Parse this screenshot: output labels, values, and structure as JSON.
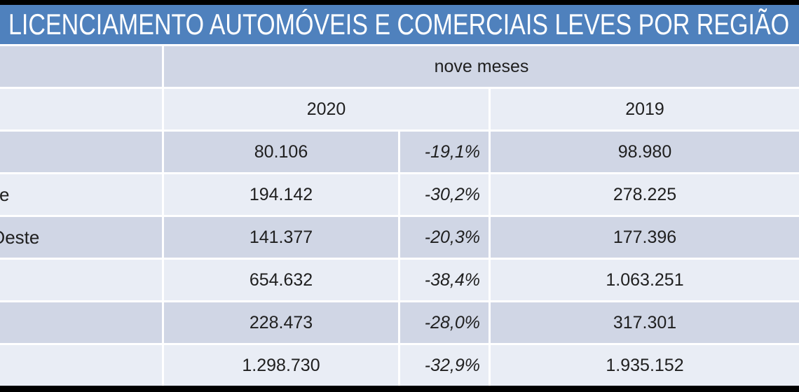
{
  "chart_data": {
    "type": "table",
    "title": "LICENCIAMENTO AUTOMÓVEIS E COMERCIAIS LEVES POR REGIÃO",
    "header": {
      "period_group": "nove meses",
      "year_2020": "2020",
      "year_2019": "2019"
    },
    "rows": [
      {
        "region_visible_text": "",
        "value_2020": "80.106",
        "variation": "-19,1%",
        "value_2019": "98.980"
      },
      {
        "region_visible_text": "e",
        "value_2020": "194.142",
        "variation": "-30,2%",
        "value_2019": "278.225"
      },
      {
        "region_visible_text": "Oeste",
        "value_2020": "141.377",
        "variation": "-20,3%",
        "value_2019": "177.396"
      },
      {
        "region_visible_text": "",
        "value_2020": "654.632",
        "variation": "-38,4%",
        "value_2019": "1.063.251"
      },
      {
        "region_visible_text": "",
        "value_2020": "228.473",
        "variation": "-28,0%",
        "value_2019": "317.301"
      },
      {
        "region_visible_text": "",
        "value_2020": "1.298.730",
        "variation": "-32,9%",
        "value_2019": "1.935.152"
      }
    ],
    "layout_hints": {
      "banding": "alternating dark/light rows",
      "variation_style": "italic, right-aligned",
      "values_alignment": "center"
    }
  },
  "colors": {
    "title_bar_blue": "#4F81BD",
    "band_dark": "#D0D6E5",
    "band_light": "#E9EDF5",
    "outer_border": "#000000",
    "title_text": "#FFFFFF",
    "cell_text": "#1F1F1F"
  }
}
